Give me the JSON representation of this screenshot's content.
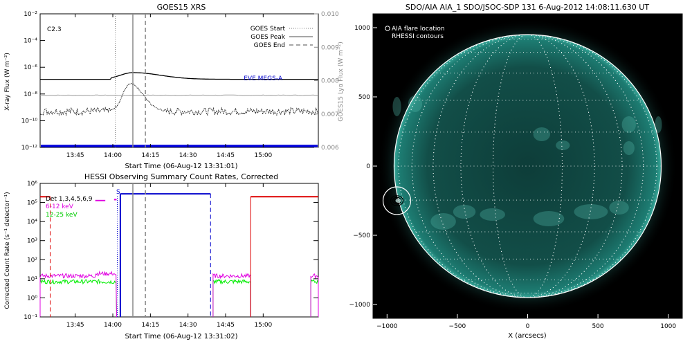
{
  "chart_data": [
    {
      "type": "line",
      "title": "GOES15 XRS",
      "xlabel": "Start Time (06-Aug-12 13:31:01)",
      "ylabel": "X-ray Flux (W m⁻²)",
      "ylabel_right": "GOES15 Lyα Flux (W m⁻²)",
      "x_ticks": [
        "13:45",
        "14:00",
        "14:15",
        "14:30",
        "14:45",
        "15:00"
      ],
      "y_ticks": [
        "10⁻¹²",
        "10⁻¹⁰",
        "10⁻⁸",
        "10⁻⁶",
        "10⁻⁴",
        "10⁻²"
      ],
      "y_ticks_right": [
        "0.006",
        "0.007",
        "0.008",
        "0.009",
        "0.010"
      ],
      "annotation": "C2.3",
      "legend": [
        "GOES Start",
        "GOES Peak",
        "GOES End"
      ],
      "eve_label": "EVE MEGS-A",
      "xlim_minutes": [
        0,
        111
      ],
      "ylim_log": [
        -12,
        -2
      ],
      "event_times_minutes": {
        "start": 30,
        "peak": 37,
        "end": 42
      },
      "long_channel": {
        "baseline_log": -6.9,
        "peak_log": -6.4
      },
      "short_channel": {
        "baseline_log": -9.3,
        "peak_log": -7.2
      },
      "lya_baseline_log": -8.1,
      "eve_level_log": -12
    },
    {
      "type": "line",
      "title": "HESSI Observing Summary Count Rates, Corrected",
      "xlabel": "Start Time (06-Aug-12 13:31:02)",
      "ylabel": "Corrected Count Rate (s⁻¹ detector⁻¹)",
      "x_ticks": [
        "13:45",
        "14:00",
        "14:15",
        "14:30",
        "14:45",
        "15:00"
      ],
      "y_ticks": [
        "10⁻¹",
        "10⁰",
        "10¹",
        "10²",
        "10³",
        "10⁴",
        "10⁵",
        "10⁶"
      ],
      "legend": [
        {
          "name": "Det 1,3,4,5,6,9",
          "color": "#000000"
        },
        {
          "name": "6-12 keV",
          "color": "#e000e0"
        },
        {
          "name": "12-25 keV",
          "color": "#00dd00"
        }
      ],
      "s_marker": "S",
      "xlim_minutes": [
        0,
        111
      ],
      "ylim_log": [
        -1,
        6
      ],
      "segments": [
        {
          "from": 0,
          "to": 30.5,
          "level": 1
        },
        {
          "from": 69,
          "to": 84,
          "level": 1
        },
        {
          "from": 108,
          "to": 111,
          "level": 1
        }
      ],
      "night_bars": [
        {
          "from": 32,
          "to": 68,
          "level": 5.45,
          "color": "#0000cc"
        },
        {
          "from": 84,
          "to": 111,
          "level": 5.3,
          "color": "#dd0000"
        },
        {
          "from": 0,
          "to": 4,
          "level": 5.3,
          "color": "#dd0000"
        }
      ]
    },
    {
      "type": "image",
      "title": "SDO/AIA AIA_1 SDO/JSOC-SDP 131   6-Aug-2012 14:08:11.630 UT",
      "xlabel": "X (arcsecs)",
      "x_ticks": [
        "−1000",
        "−500",
        "0",
        "500",
        "1000"
      ],
      "y_ticks": [
        "1000",
        "500",
        "0",
        "−500",
        "−1000"
      ],
      "legend": [
        "AIA flare location",
        "RHESSI contours"
      ],
      "xlim": [
        -1100,
        1100
      ],
      "ylim": [
        -1100,
        1100
      ],
      "solar_radius": 950,
      "flare_location": [
        -930,
        -250
      ]
    }
  ]
}
